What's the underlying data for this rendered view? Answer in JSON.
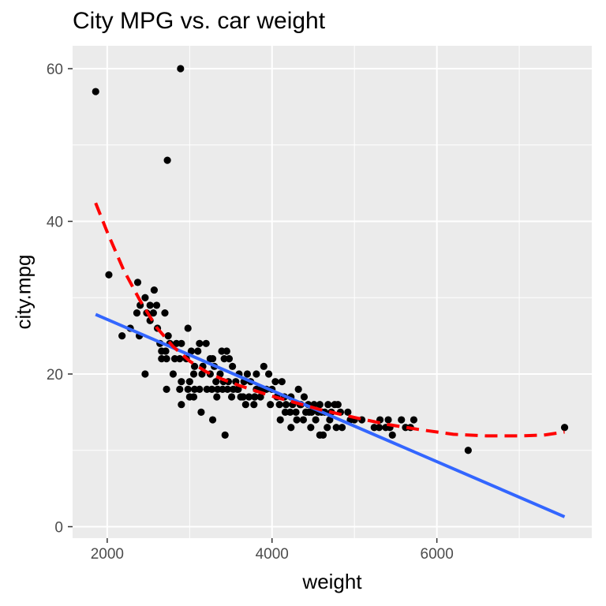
{
  "chart_data": {
    "type": "scatter",
    "title": "City MPG vs. car weight",
    "xlabel": "weight",
    "ylabel": "city.mpg",
    "xlim": [
      1580,
      7880
    ],
    "ylim": [
      -1.5,
      63
    ],
    "x_ticks": [
      2000,
      4000,
      6000
    ],
    "y_ticks": [
      0,
      20,
      40,
      60
    ],
    "x_tick_labels": [
      "2000",
      "4000",
      "6000"
    ],
    "y_tick_labels": [
      "0",
      "20",
      "40",
      "60"
    ],
    "grid": true,
    "legend": "none",
    "points": [
      [
        1860,
        57
      ],
      [
        2890,
        60
      ],
      [
        2730,
        48
      ],
      [
        2020,
        33
      ],
      [
        2370,
        32
      ],
      [
        2400,
        29
      ],
      [
        2460,
        30
      ],
      [
        2520,
        29
      ],
      [
        2570,
        31
      ],
      [
        2600,
        29
      ],
      [
        2360,
        28
      ],
      [
        2480,
        28
      ],
      [
        2520,
        27
      ],
      [
        2560,
        28
      ],
      [
        2700,
        28
      ],
      [
        2610,
        26
      ],
      [
        2980,
        26
      ],
      [
        2280,
        26
      ],
      [
        2180,
        25
      ],
      [
        2390,
        25
      ],
      [
        2740,
        25
      ],
      [
        2840,
        24
      ],
      [
        2640,
        24
      ],
      [
        2660,
        23
      ],
      [
        2710,
        23
      ],
      [
        2760,
        24
      ],
      [
        2900,
        24
      ],
      [
        3020,
        23
      ],
      [
        3120,
        24
      ],
      [
        3200,
        24
      ],
      [
        3100,
        23
      ],
      [
        3250,
        22
      ],
      [
        3280,
        22
      ],
      [
        3390,
        23
      ],
      [
        3420,
        22
      ],
      [
        3450,
        23
      ],
      [
        3480,
        22
      ],
      [
        3520,
        21
      ],
      [
        2660,
        22
      ],
      [
        2720,
        22
      ],
      [
        2820,
        22
      ],
      [
        2880,
        22
      ],
      [
        2960,
        22
      ],
      [
        3060,
        21
      ],
      [
        3160,
        21
      ],
      [
        3300,
        21
      ],
      [
        3370,
        20
      ],
      [
        3600,
        20
      ],
      [
        3700,
        20
      ],
      [
        3810,
        20
      ],
      [
        3900,
        21
      ],
      [
        3960,
        20
      ],
      [
        4040,
        19
      ],
      [
        4120,
        19
      ],
      [
        2460,
        20
      ],
      [
        2800,
        20
      ],
      [
        2900,
        19
      ],
      [
        3000,
        19
      ],
      [
        3050,
        20
      ],
      [
        3150,
        20
      ],
      [
        3250,
        20
      ],
      [
        3320,
        19
      ],
      [
        3410,
        19
      ],
      [
        3470,
        19
      ],
      [
        3560,
        19
      ],
      [
        3660,
        19
      ],
      [
        3740,
        19
      ],
      [
        3810,
        18
      ],
      [
        3870,
        18
      ],
      [
        2720,
        18
      ],
      [
        2880,
        18
      ],
      [
        2980,
        18
      ],
      [
        3060,
        18
      ],
      [
        3210,
        18
      ],
      [
        3270,
        18
      ],
      [
        3340,
        18
      ],
      [
        3400,
        18
      ],
      [
        3460,
        18
      ],
      [
        3530,
        18
      ],
      [
        3590,
        18
      ],
      [
        3650,
        17
      ],
      [
        3720,
        17
      ],
      [
        3790,
        17
      ],
      [
        3860,
        17
      ],
      [
        3930,
        18
      ],
      [
        4000,
        18
      ],
      [
        4060,
        17
      ],
      [
        4150,
        17
      ],
      [
        4230,
        17
      ],
      [
        4320,
        18
      ],
      [
        4390,
        17
      ],
      [
        4440,
        16
      ],
      [
        4510,
        16
      ],
      [
        4580,
        16
      ],
      [
        3050,
        17
      ],
      [
        3680,
        16
      ],
      [
        3790,
        17
      ],
      [
        3980,
        16
      ],
      [
        4090,
        16
      ],
      [
        4170,
        16
      ],
      [
        4250,
        16
      ],
      [
        4340,
        16
      ],
      [
        4410,
        15
      ],
      [
        4480,
        15
      ],
      [
        4560,
        15
      ],
      [
        4640,
        15
      ],
      [
        4720,
        15
      ],
      [
        4800,
        16
      ],
      [
        4760,
        16
      ],
      [
        4680,
        16
      ],
      [
        3620,
        17
      ],
      [
        4160,
        15
      ],
      [
        4220,
        15
      ],
      [
        4300,
        14
      ],
      [
        4380,
        14
      ],
      [
        4450,
        15
      ],
      [
        4600,
        15
      ],
      [
        4700,
        14
      ],
      [
        4780,
        13
      ],
      [
        4830,
        15
      ],
      [
        4920,
        15
      ],
      [
        5000,
        14
      ],
      [
        5090,
        14
      ],
      [
        5240,
        13
      ],
      [
        5310,
        14
      ],
      [
        5380,
        13
      ],
      [
        5430,
        13
      ],
      [
        5300,
        13
      ],
      [
        5570,
        14
      ],
      [
        5620,
        13
      ],
      [
        5680,
        13
      ],
      [
        5720,
        14
      ],
      [
        5460,
        12
      ],
      [
        5410,
        14
      ],
      [
        3140,
        15
      ],
      [
        3280,
        14
      ],
      [
        3430,
        12
      ],
      [
        2900,
        16
      ],
      [
        3000,
        17
      ],
      [
        4100,
        14
      ],
      [
        4230,
        13
      ],
      [
        4580,
        12
      ],
      [
        4620,
        12
      ],
      [
        4670,
        13
      ],
      [
        6380,
        10
      ],
      [
        7550,
        13
      ],
      [
        3780,
        16
      ],
      [
        3510,
        17
      ],
      [
        3580,
        18
      ],
      [
        3330,
        17
      ],
      [
        3120,
        18
      ],
      [
        4850,
        13
      ],
      [
        4950,
        14
      ],
      [
        4290,
        15
      ],
      [
        4350,
        16
      ],
      [
        4470,
        13
      ],
      [
        4530,
        14
      ]
    ],
    "series": [
      {
        "style": "solid",
        "color": "#3366ff",
        "x": [
          1860,
          7550
        ],
        "y": [
          27.8,
          1.3
        ]
      },
      {
        "style": "dashed",
        "color": "#ff0000",
        "x": [
          1860,
          2000,
          2200,
          2400,
          2600,
          2800,
          3000,
          3200,
          3400,
          3600,
          3800,
          4000,
          4300,
          4600,
          5000,
          5400,
          5800,
          6200,
          6600,
          7000,
          7300,
          7550
        ],
        "y": [
          42.4,
          38.6,
          33.6,
          29.6,
          26.1,
          23.6,
          21.7,
          20.3,
          19.3,
          18.5,
          17.8,
          17.1,
          16.2,
          15.3,
          14.3,
          13.4,
          12.7,
          12.1,
          11.9,
          11.9,
          12.0,
          12.4
        ]
      }
    ],
    "colors": {
      "panel_background": "#ebebeb",
      "grid_line": "#ffffff",
      "point": "#000000",
      "axis_text": "#4d4d4d",
      "tick": "#333333"
    }
  }
}
